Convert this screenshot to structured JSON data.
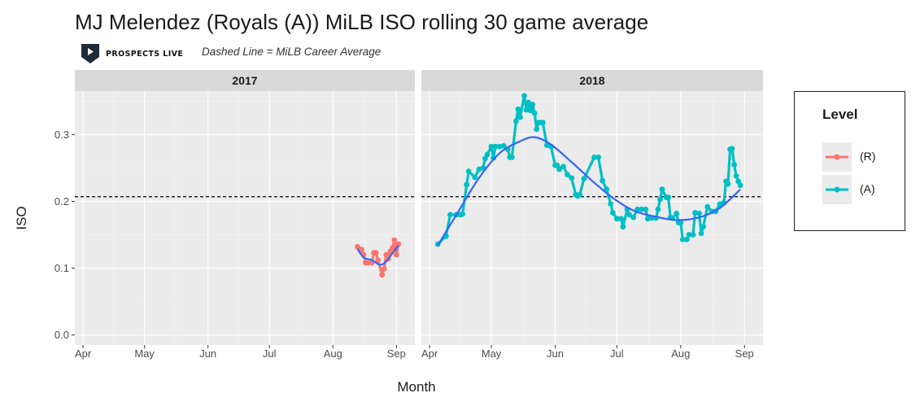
{
  "title": "MJ Melendez (Royals (A)) MiLB ISO rolling 30 game average",
  "brand": {
    "name": "PROSPECTS LIVE"
  },
  "subtitle": "Dashed Line = MiLB Career Average",
  "colors": {
    "R": "#F8766D",
    "A": "#00BFC4",
    "smooth": "#3366FF",
    "panel_bg": "#EBEBEB",
    "strip_bg": "#D9D9D9"
  },
  "legend": {
    "title": "Level",
    "items": [
      {
        "key": "R",
        "label": "(R)"
      },
      {
        "key": "A",
        "label": "(A)"
      }
    ]
  },
  "chart_data": {
    "type": "line",
    "title": "MJ Melendez (Royals (A)) MiLB ISO rolling 30 game average",
    "xlabel": "Month",
    "ylabel": "ISO",
    "ylim": [
      -0.015,
      0.365
    ],
    "yticks": [
      0.0,
      0.1,
      0.2,
      0.3
    ],
    "ytick_labels": [
      "0.0",
      "0.1",
      "0.2",
      "0.3"
    ],
    "career_average": 0.207,
    "grid": true,
    "legend_position": "right",
    "facets": [
      {
        "label": "2017",
        "xlim": [
          "2017-03-28",
          "2017-09-10"
        ],
        "xticks": [
          "2017-04-01",
          "2017-05-01",
          "2017-06-01",
          "2017-07-01",
          "2017-08-01",
          "2017-09-01"
        ],
        "xtick_labels": [
          "Apr",
          "May",
          "Jun",
          "Jul",
          "Aug",
          "Sep"
        ],
        "series": [
          {
            "level": "R",
            "points": [
              [
                "2017-08-13",
                0.132
              ],
              [
                "2017-08-15",
                0.128
              ],
              [
                "2017-08-16",
                0.12
              ],
              [
                "2017-08-17",
                0.108
              ],
              [
                "2017-08-18",
                0.108
              ],
              [
                "2017-08-20",
                0.108
              ],
              [
                "2017-08-21",
                0.123
              ],
              [
                "2017-08-22",
                0.123
              ],
              [
                "2017-08-23",
                0.112
              ],
              [
                "2017-08-25",
                0.09
              ],
              [
                "2017-08-26",
                0.099
              ],
              [
                "2017-08-27",
                0.12
              ],
              [
                "2017-08-28",
                0.114
              ],
              [
                "2017-08-29",
                0.125
              ],
              [
                "2017-08-30",
                0.13
              ],
              [
                "2017-08-31",
                0.142
              ],
              [
                "2017-09-01",
                0.12
              ],
              [
                "2017-09-02",
                0.136
              ]
            ],
            "smooth": [
              [
                "2017-08-13",
                0.129
              ],
              [
                "2017-08-16",
                0.116
              ],
              [
                "2017-08-20",
                0.112
              ],
              [
                "2017-08-24",
                0.105
              ],
              [
                "2017-08-27",
                0.11
              ],
              [
                "2017-08-30",
                0.122
              ],
              [
                "2017-09-02",
                0.134
              ]
            ]
          }
        ]
      },
      {
        "label": "2018",
        "xlim": [
          "2018-03-28",
          "2018-09-10"
        ],
        "xticks": [
          "2018-04-01",
          "2018-05-01",
          "2018-06-01",
          "2018-07-01",
          "2018-08-01",
          "2018-09-01"
        ],
        "xtick_labels": [
          "Apr",
          "May",
          "Jun",
          "Jul",
          "Aug",
          "Sep"
        ],
        "series": [
          {
            "level": "A",
            "points": [
              [
                "2018-04-05",
                0.136
              ],
              [
                "2018-04-09",
                0.148
              ],
              [
                "2018-04-11",
                0.18
              ],
              [
                "2018-04-14",
                0.18
              ],
              [
                "2018-04-16",
                0.18
              ],
              [
                "2018-04-17",
                0.181
              ],
              [
                "2018-04-19",
                0.225
              ],
              [
                "2018-04-20",
                0.245
              ],
              [
                "2018-04-23",
                0.236
              ],
              [
                "2018-04-25",
                0.248
              ],
              [
                "2018-04-27",
                0.25
              ],
              [
                "2018-04-28",
                0.264
              ],
              [
                "2018-04-29",
                0.27
              ],
              [
                "2018-05-01",
                0.282
              ],
              [
                "2018-05-02",
                0.265
              ],
              [
                "2018-05-03",
                0.282
              ],
              [
                "2018-05-05",
                0.282
              ],
              [
                "2018-05-07",
                0.283
              ],
              [
                "2018-05-09",
                0.278
              ],
              [
                "2018-05-10",
                0.266
              ],
              [
                "2018-05-11",
                0.266
              ],
              [
                "2018-05-13",
                0.32
              ],
              [
                "2018-05-14",
                0.338
              ],
              [
                "2018-05-15",
                0.326
              ],
              [
                "2018-05-17",
                0.358
              ],
              [
                "2018-05-18",
                0.337
              ],
              [
                "2018-05-19",
                0.348
              ],
              [
                "2018-05-20",
                0.336
              ],
              [
                "2018-05-21",
                0.345
              ],
              [
                "2018-05-22",
                0.332
              ],
              [
                "2018-05-23",
                0.308
              ],
              [
                "2018-05-24",
                0.318
              ],
              [
                "2018-05-25",
                0.318
              ],
              [
                "2018-05-26",
                0.318
              ],
              [
                "2018-05-28",
                0.284
              ],
              [
                "2018-05-30",
                0.282
              ],
              [
                "2018-06-01",
                0.254
              ],
              [
                "2018-06-02",
                0.254
              ],
              [
                "2018-06-03",
                0.248
              ],
              [
                "2018-06-05",
                0.252
              ],
              [
                "2018-06-07",
                0.24
              ],
              [
                "2018-06-09",
                0.235
              ],
              [
                "2018-06-11",
                0.21
              ],
              [
                "2018-06-12",
                0.208
              ],
              [
                "2018-06-13",
                0.21
              ],
              [
                "2018-06-15",
                0.234
              ],
              [
                "2018-06-20",
                0.266
              ],
              [
                "2018-06-22",
                0.266
              ],
              [
                "2018-06-24",
                0.231
              ],
              [
                "2018-06-26",
                0.218
              ],
              [
                "2018-06-28",
                0.196
              ],
              [
                "2018-06-29",
                0.183
              ],
              [
                "2018-07-01",
                0.174
              ],
              [
                "2018-07-03",
                0.174
              ],
              [
                "2018-07-04",
                0.162
              ],
              [
                "2018-07-06",
                0.188
              ],
              [
                "2018-07-07",
                0.18
              ],
              [
                "2018-07-09",
                0.176
              ],
              [
                "2018-07-11",
                0.188
              ],
              [
                "2018-07-13",
                0.188
              ],
              [
                "2018-07-15",
                0.188
              ],
              [
                "2018-07-16",
                0.174
              ],
              [
                "2018-07-18",
                0.175
              ],
              [
                "2018-07-20",
                0.175
              ],
              [
                "2018-07-21",
                0.188
              ],
              [
                "2018-07-22",
                0.203
              ],
              [
                "2018-07-23",
                0.218
              ],
              [
                "2018-07-25",
                0.206
              ],
              [
                "2018-07-26",
                0.206
              ],
              [
                "2018-07-27",
                0.176
              ],
              [
                "2018-07-28",
                0.175
              ],
              [
                "2018-07-30",
                0.182
              ],
              [
                "2018-07-31",
                0.168
              ],
              [
                "2018-08-01",
                0.168
              ],
              [
                "2018-08-02",
                0.143
              ],
              [
                "2018-08-04",
                0.143
              ],
              [
                "2018-08-05",
                0.15
              ],
              [
                "2018-08-07",
                0.15
              ],
              [
                "2018-08-08",
                0.183
              ],
              [
                "2018-08-10",
                0.182
              ],
              [
                "2018-08-11",
                0.152
              ],
              [
                "2018-08-12",
                0.162
              ],
              [
                "2018-08-14",
                0.192
              ],
              [
                "2018-08-16",
                0.185
              ],
              [
                "2018-08-18",
                0.185
              ],
              [
                "2018-08-20",
                0.196
              ],
              [
                "2018-08-22",
                0.198
              ],
              [
                "2018-08-23",
                0.23
              ],
              [
                "2018-08-24",
                0.226
              ],
              [
                "2018-08-25",
                0.278
              ],
              [
                "2018-08-26",
                0.279
              ],
              [
                "2018-08-27",
                0.255
              ],
              [
                "2018-08-28",
                0.238
              ],
              [
                "2018-08-29",
                0.23
              ],
              [
                "2018-08-30",
                0.224
              ]
            ],
            "smooth": [
              [
                "2018-04-05",
                0.134
              ],
              [
                "2018-04-15",
                0.185
              ],
              [
                "2018-04-25",
                0.235
              ],
              [
                "2018-05-05",
                0.272
              ],
              [
                "2018-05-15",
                0.29
              ],
              [
                "2018-05-22",
                0.296
              ],
              [
                "2018-05-30",
                0.285
              ],
              [
                "2018-06-10",
                0.256
              ],
              [
                "2018-06-20",
                0.228
              ],
              [
                "2018-06-30",
                0.203
              ],
              [
                "2018-07-10",
                0.185
              ],
              [
                "2018-07-20",
                0.177
              ],
              [
                "2018-07-30",
                0.172
              ],
              [
                "2018-08-10",
                0.176
              ],
              [
                "2018-08-20",
                0.19
              ],
              [
                "2018-08-30",
                0.218
              ]
            ]
          }
        ]
      }
    ]
  }
}
